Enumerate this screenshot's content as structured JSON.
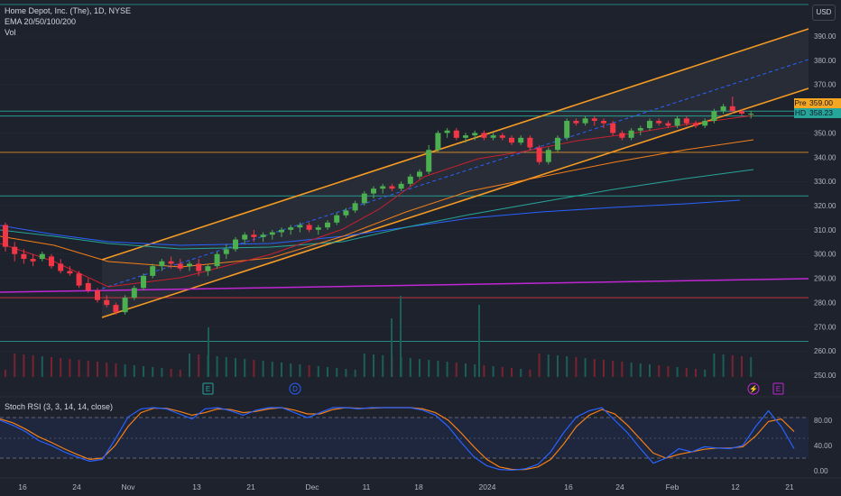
{
  "legend": {
    "title": "Home Depot, Inc. (The), 1D, NYSE",
    "ema": "EMA 20/50/100/200",
    "vol": "Vol"
  },
  "stoch_label": "Stoch RSI (3, 3, 14, 14, close)",
  "currency": "USD",
  "price_axis": [
    "390.00",
    "380.00",
    "370.00",
    "350.00",
    "340.00",
    "330.00",
    "320.00",
    "310.00",
    "300.00",
    "290.00",
    "280.00",
    "270.00",
    "260.00",
    "250.00"
  ],
  "stoch_axis": [
    "80.00",
    "40.00",
    "0.00"
  ],
  "time_axis": [
    "16",
    "24",
    "Nov",
    "13",
    "21",
    "Dec",
    "11",
    "18",
    "2024",
    "16",
    "24",
    "Feb",
    "12",
    "21"
  ],
  "price_tags": {
    "pre": {
      "label": "Pre",
      "value": "359.00"
    },
    "hd": {
      "label": "HD",
      "value": "358.23"
    }
  },
  "event_markers": [
    "E",
    "D",
    "E"
  ],
  "colors": {
    "up": "#26a69a",
    "up_candle": "#4caf50",
    "down": "#f23645",
    "channel": "#f59b23",
    "ema20": "#c8202f",
    "ema50": "#f57f17",
    "ema100": "#26a69a",
    "ema200": "#2962ff",
    "purple": "#c026d3",
    "stoch_k": "#2962ff",
    "stoch_d": "#f57f17"
  },
  "chart_data": {
    "type": "candlestick",
    "title": "Home Depot, Inc. (The), 1D, NYSE",
    "ylim": [
      245,
      397
    ],
    "candles": [
      [
        312,
        313,
        301,
        303
      ],
      [
        303,
        305,
        297,
        300
      ],
      [
        300,
        302,
        296,
        298
      ],
      [
        298,
        300,
        295,
        297
      ],
      [
        298,
        301,
        297,
        300
      ],
      [
        299,
        300,
        294,
        295
      ],
      [
        296,
        298,
        292,
        293
      ],
      [
        293,
        295,
        291,
        292
      ],
      [
        292,
        293,
        286,
        287
      ],
      [
        288,
        290,
        284,
        285
      ],
      [
        285,
        286,
        280,
        281
      ],
      [
        281,
        283,
        278,
        279
      ],
      [
        279,
        280,
        275,
        276
      ],
      [
        276,
        283,
        275,
        282
      ],
      [
        282,
        287,
        281,
        286
      ],
      [
        286,
        292,
        285,
        291
      ],
      [
        291,
        296,
        290,
        295
      ],
      [
        295,
        298,
        293,
        297
      ],
      [
        297,
        299,
        294,
        296
      ],
      [
        296,
        298,
        293,
        294
      ],
      [
        295,
        297,
        293,
        296
      ],
      [
        296,
        298,
        291,
        293
      ],
      [
        293,
        296,
        291,
        295
      ],
      [
        295,
        301,
        294,
        300
      ],
      [
        300,
        304,
        298,
        302
      ],
      [
        302,
        307,
        301,
        306
      ],
      [
        306,
        309,
        304,
        308
      ],
      [
        308,
        310,
        305,
        307
      ],
      [
        307,
        309,
        305,
        308
      ],
      [
        308,
        310,
        306,
        309
      ],
      [
        309,
        311,
        307,
        310
      ],
      [
        310,
        312,
        308,
        311
      ],
      [
        311,
        313,
        309,
        312
      ],
      [
        312,
        313,
        309,
        310
      ],
      [
        310,
        312,
        308,
        311
      ],
      [
        311,
        314,
        310,
        313
      ],
      [
        313,
        317,
        312,
        316
      ],
      [
        316,
        319,
        315,
        318
      ],
      [
        318,
        322,
        317,
        321
      ],
      [
        321,
        326,
        320,
        325
      ],
      [
        325,
        328,
        323,
        327
      ],
      [
        327,
        329,
        325,
        328
      ],
      [
        328,
        329,
        326,
        327
      ],
      [
        327,
        330,
        326,
        329
      ],
      [
        329,
        333,
        328,
        332
      ],
      [
        332,
        335,
        331,
        334
      ],
      [
        334,
        345,
        333,
        343
      ],
      [
        343,
        351,
        342,
        350
      ],
      [
        350,
        352,
        348,
        351
      ],
      [
        351,
        352,
        347,
        348
      ],
      [
        348,
        350,
        346,
        349
      ],
      [
        349,
        351,
        347,
        350
      ],
      [
        350,
        351,
        347,
        348
      ],
      [
        348,
        350,
        347,
        349
      ],
      [
        349,
        350,
        347,
        348
      ],
      [
        348,
        349,
        345,
        346
      ],
      [
        346,
        349,
        345,
        348
      ],
      [
        348,
        349,
        343,
        344
      ],
      [
        344,
        345,
        337,
        338
      ],
      [
        338,
        344,
        337,
        343
      ],
      [
        343,
        349,
        342,
        348
      ],
      [
        348,
        356,
        347,
        355
      ],
      [
        355,
        356,
        353,
        354
      ],
      [
        354,
        357,
        353,
        356
      ],
      [
        356,
        357,
        353,
        355
      ],
      [
        355,
        356,
        352,
        354
      ],
      [
        354,
        355,
        349,
        350
      ],
      [
        350,
        351,
        347,
        348
      ],
      [
        348,
        352,
        347,
        351
      ],
      [
        351,
        353,
        349,
        352
      ],
      [
        352,
        356,
        351,
        355
      ],
      [
        355,
        356,
        353,
        354
      ],
      [
        354,
        355,
        352,
        353
      ],
      [
        353,
        357,
        352,
        356
      ],
      [
        356,
        357,
        353,
        354
      ],
      [
        354,
        355,
        352,
        353
      ],
      [
        353,
        356,
        352,
        355
      ],
      [
        355,
        360,
        354,
        359
      ],
      [
        359,
        362,
        358,
        361
      ],
      [
        361,
        365,
        358,
        359
      ],
      [
        359,
        360,
        357,
        358
      ],
      [
        358,
        359,
        356,
        358
      ]
    ],
    "horizontal_levels": [
      {
        "value": 342,
        "color": "orange"
      },
      {
        "value": 324,
        "color": "green"
      },
      {
        "value": 282,
        "color": "red"
      },
      {
        "value": 264,
        "color": "green"
      },
      {
        "value": 357,
        "color": "green"
      },
      {
        "value": 359,
        "color": "green"
      }
    ],
    "stoch_rsi": {
      "k": [
        80,
        72,
        62,
        48,
        40,
        30,
        22,
        15,
        18,
        50,
        85,
        98,
        100,
        98,
        90,
        82,
        98,
        100,
        95,
        88,
        96,
        100,
        100,
        92,
        84,
        92,
        100,
        100,
        98,
        100,
        100,
        100,
        100,
        96,
        88,
        70,
        45,
        22,
        8,
        2,
        1,
        3,
        10,
        30,
        60,
        85,
        95,
        100,
        80,
        60,
        35,
        12,
        20,
        35,
        30,
        38,
        36,
        35,
        40,
        70,
        95,
        70,
        35
      ],
      "d": [
        82,
        76,
        66,
        54,
        45,
        35,
        26,
        18,
        20,
        40,
        70,
        92,
        99,
        99,
        94,
        88,
        92,
        98,
        97,
        92,
        94,
        98,
        100,
        96,
        90,
        90,
        97,
        100,
        99,
        99,
        100,
        100,
        100,
        98,
        92,
        80,
        60,
        38,
        18,
        6,
        2,
        2,
        6,
        18,
        42,
        70,
        88,
        97,
        90,
        72,
        50,
        28,
        20,
        26,
        30,
        34,
        36,
        36,
        38,
        55,
        78,
        82,
        62
      ]
    }
  }
}
